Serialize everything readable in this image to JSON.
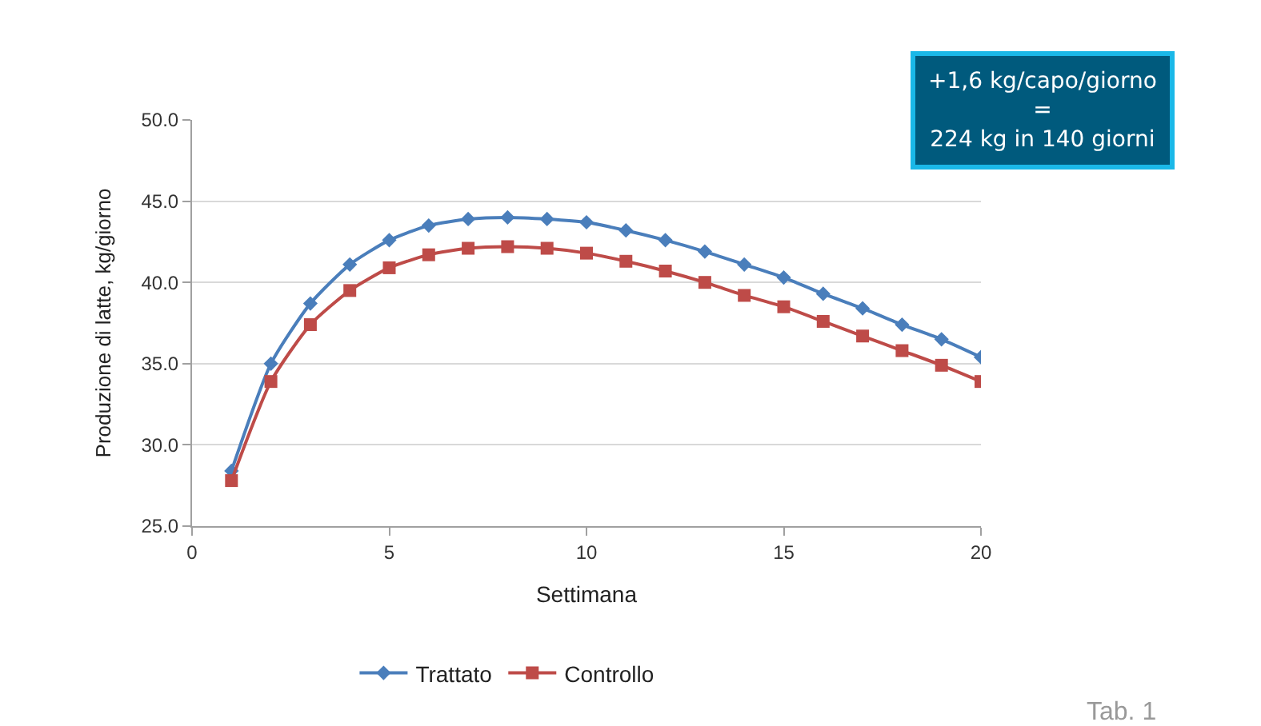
{
  "chart_data": {
    "type": "line",
    "xlabel": "Settimana",
    "ylabel": "Produzione di latte, kg/giorno",
    "x": [
      1,
      2,
      3,
      4,
      5,
      6,
      7,
      8,
      9,
      10,
      11,
      12,
      13,
      14,
      15,
      16,
      17,
      18,
      19,
      20
    ],
    "series": [
      {
        "name": "Trattato",
        "color": "#4a7ebb",
        "marker": "diamond",
        "values": [
          28.4,
          35.0,
          38.7,
          41.1,
          42.6,
          43.5,
          43.9,
          44.0,
          43.9,
          43.7,
          43.2,
          42.6,
          41.9,
          41.1,
          40.3,
          39.3,
          38.4,
          37.4,
          36.5,
          35.4
        ]
      },
      {
        "name": "Controllo",
        "color": "#be4b48",
        "marker": "square",
        "values": [
          27.8,
          33.9,
          37.4,
          39.5,
          40.9,
          41.7,
          42.1,
          42.2,
          42.1,
          41.8,
          41.3,
          40.7,
          40.0,
          39.2,
          38.5,
          37.6,
          36.7,
          35.8,
          34.9,
          33.9
        ]
      }
    ],
    "xlim": [
      0,
      20
    ],
    "xticks": [
      0,
      5,
      10,
      15,
      20
    ],
    "ylim": [
      25,
      50
    ],
    "yticks": [
      {
        "value": 25,
        "label": "25.0"
      },
      {
        "value": 30,
        "label": "30.0"
      },
      {
        "value": 35,
        "label": "35.0"
      },
      {
        "value": 40,
        "label": "40.0"
      },
      {
        "value": 45,
        "label": "45.0"
      },
      {
        "value": 50,
        "label": "50.0"
      }
    ],
    "grid": "y",
    "legend": "bottom",
    "line_style": "solid",
    "annotations": [
      "+1,6 kg/capo/giorno\n=\n224 kg in 140 giorni",
      "Tab. 1"
    ]
  }
}
